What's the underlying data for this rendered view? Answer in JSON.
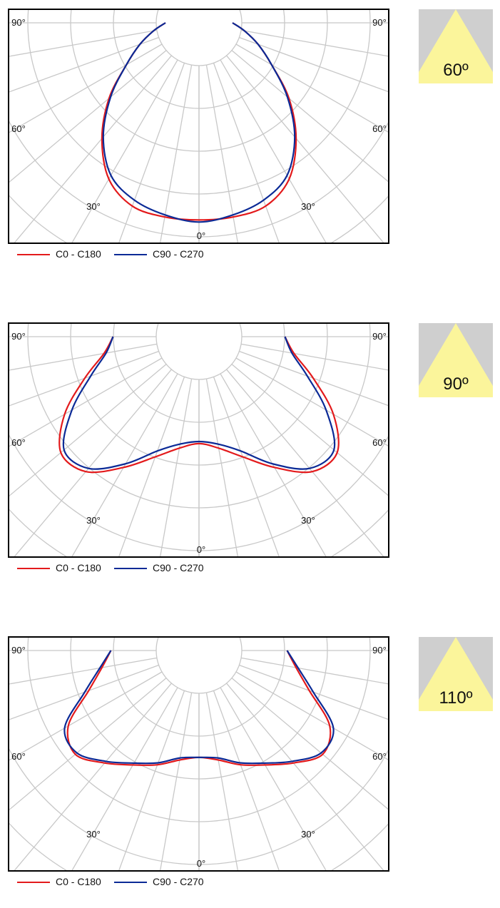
{
  "colors": {
    "c0": "#e31a1c",
    "c90": "#0b2a96",
    "grid": "#c8c8c8",
    "badge_bg": "#cfcfcf",
    "badge_beam": "#fbf59b"
  },
  "legend": [
    {
      "label": "C0 - C180",
      "color": "#e31a1c"
    },
    {
      "label": "C90 - C270",
      "color": "#0b2a96"
    }
  ],
  "chart_data": [
    {
      "type": "polar",
      "beam_label": "60º",
      "angle_labels": {
        "a90": "90°",
        "a60": "60°",
        "a30": "30°",
        "a0": "0°"
      },
      "angles_deg": [
        0,
        10,
        20,
        30,
        40,
        50,
        60,
        70,
        80,
        90
      ],
      "series": [
        {
          "name": "C0 - C180",
          "values": [
            0.94,
            0.94,
            0.93,
            0.86,
            0.72,
            0.56,
            0.4,
            0.3,
            0.22,
            0.16
          ]
        },
        {
          "name": "C90 - C270",
          "values": [
            0.95,
            0.93,
            0.9,
            0.84,
            0.71,
            0.55,
            0.4,
            0.3,
            0.22,
            0.16
          ]
        }
      ]
    },
    {
      "type": "polar",
      "beam_label": "90º",
      "angle_labels": {
        "a90": "90°",
        "a60": "60°",
        "a30": "30°",
        "a0": "0°"
      },
      "angles_deg": [
        0,
        10,
        20,
        30,
        40,
        50,
        60,
        70,
        80,
        90
      ],
      "series": [
        {
          "name": "C0 - C180",
          "values": [
            0.51,
            0.54,
            0.61,
            0.72,
            0.84,
            0.86,
            0.74,
            0.58,
            0.46,
            0.41
          ]
        },
        {
          "name": "C90 - C270",
          "values": [
            0.5,
            0.52,
            0.58,
            0.7,
            0.82,
            0.84,
            0.7,
            0.55,
            0.45,
            0.41
          ]
        }
      ]
    },
    {
      "type": "polar",
      "beam_label": "110º",
      "angle_labels": {
        "a90": "90°",
        "a60": "60°",
        "a30": "30°",
        "a0": "0°"
      },
      "angles_deg": [
        0,
        10,
        20,
        30,
        40,
        50,
        60,
        70,
        80,
        90
      ],
      "series": [
        {
          "name": "C0 - C180",
          "values": [
            0.51,
            0.53,
            0.58,
            0.63,
            0.7,
            0.77,
            0.72,
            0.56,
            0.47,
            0.42
          ]
        },
        {
          "name": "C90 - C270",
          "values": [
            0.51,
            0.52,
            0.57,
            0.62,
            0.69,
            0.76,
            0.74,
            0.58,
            0.48,
            0.42
          ]
        }
      ]
    }
  ]
}
